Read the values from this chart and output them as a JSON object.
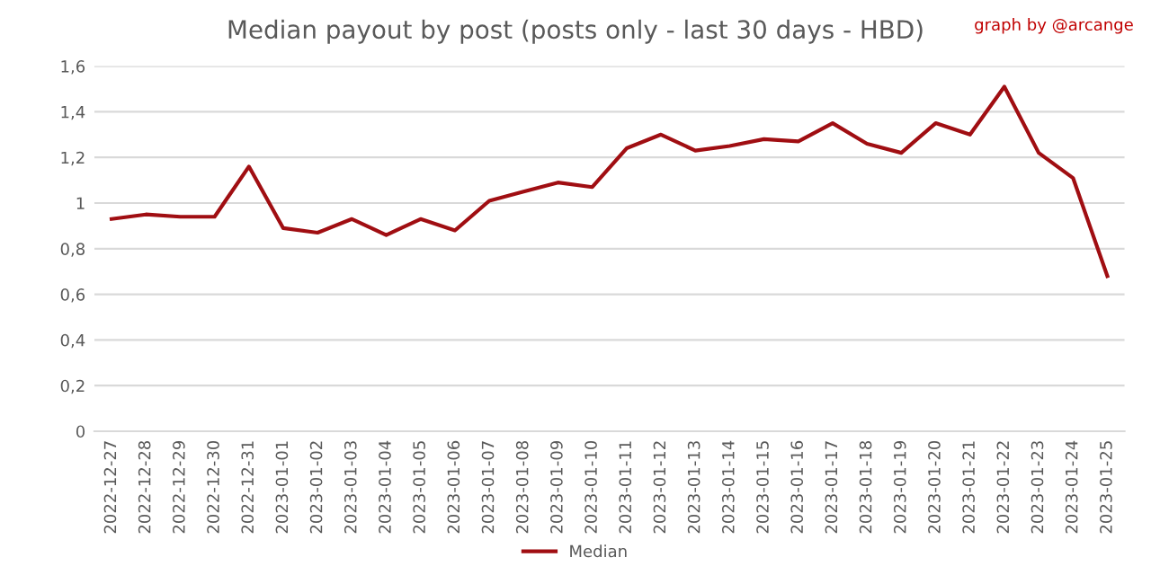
{
  "chart_data": {
    "type": "line",
    "title": "Median payout by post (posts only - last 30 days - HBD)",
    "annotations": [
      "graph by @arcange"
    ],
    "categories": [
      "2022-12-27",
      "2022-12-28",
      "2022-12-29",
      "2022-12-30",
      "2022-12-31",
      "2023-01-01",
      "2023-01-02",
      "2023-01-03",
      "2023-01-04",
      "2023-01-05",
      "2023-01-06",
      "2023-01-07",
      "2023-01-08",
      "2023-01-09",
      "2023-01-10",
      "2023-01-11",
      "2023-01-12",
      "2023-01-13",
      "2023-01-14",
      "2023-01-15",
      "2023-01-16",
      "2023-01-17",
      "2023-01-18",
      "2023-01-19",
      "2023-01-20",
      "2023-01-21",
      "2023-01-22",
      "2023-01-23",
      "2023-01-24",
      "2023-01-25"
    ],
    "series": [
      {
        "name": "Median",
        "color": "#a00e12",
        "values": [
          0.93,
          0.95,
          0.94,
          0.94,
          1.16,
          0.89,
          0.87,
          0.93,
          0.86,
          0.93,
          0.88,
          1.01,
          1.05,
          1.09,
          1.07,
          1.24,
          1.3,
          1.23,
          1.25,
          1.28,
          1.27,
          1.35,
          1.26,
          1.22,
          1.35,
          1.3,
          1.51,
          1.22,
          1.11,
          0.68
        ]
      }
    ],
    "ylim": [
      0,
      1.6
    ],
    "yticks": [
      0,
      {
        "value": 0.2,
        "label": "0,2"
      },
      {
        "value": 0.4,
        "label": "0,4"
      },
      {
        "value": 0.6,
        "label": "0,6"
      },
      {
        "value": 0.8,
        "label": "0,8"
      },
      1,
      {
        "value": 1.2,
        "label": "1,2"
      },
      {
        "value": 1.4,
        "label": "1,4"
      },
      {
        "value": 1.6,
        "label": "1,6"
      }
    ],
    "grid": "y",
    "legend": "bottom",
    "marker": "none",
    "line_style": "solid"
  }
}
